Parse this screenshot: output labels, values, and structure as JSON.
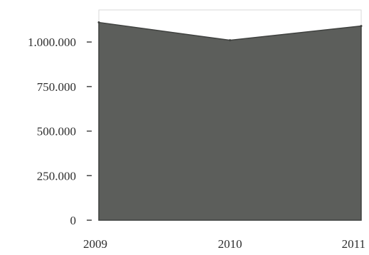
{
  "chart_data": {
    "type": "area",
    "title": "",
    "xlabel": "",
    "ylabel": "",
    "categories": [
      "2009",
      "2010",
      "2011"
    ],
    "series": [
      {
        "values": [
          1110000,
          1010000,
          1090000
        ]
      }
    ],
    "ylim": [
      0,
      1180000
    ],
    "yticks": [
      {
        "value": 0,
        "label": "0"
      },
      {
        "value": 250000,
        "label": "250.000"
      },
      {
        "value": 500000,
        "label": "500.000"
      },
      {
        "value": 750000,
        "label": "750.000"
      },
      {
        "value": 1000000,
        "label": "1.000.000"
      }
    ],
    "grid": false,
    "legend": "none",
    "colors": {
      "area_fill": "#5c5e5b",
      "area_edge": "#3f413f",
      "tick_mark": "#444444",
      "text": "#2e2e2e"
    }
  }
}
